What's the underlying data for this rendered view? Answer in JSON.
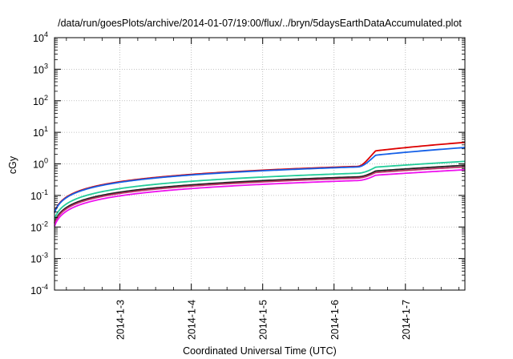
{
  "chart_data": {
    "type": "line",
    "title": "/data/run/goesPlots/archive/2014-01-07/19:00/flux/../bryn/5daysEarthDataAccumulated.plot",
    "xlabel": "Coordinated Universal Time (UTC)",
    "ylabel": "cGy",
    "y_scale": "log",
    "ylim": [
      0.0001,
      10000
    ],
    "y_ticks": [
      {
        "value": 0.0001,
        "base": "10",
        "exp": "-4"
      },
      {
        "value": 0.001,
        "base": "10",
        "exp": "-3"
      },
      {
        "value": 0.01,
        "base": "10",
        "exp": "-2"
      },
      {
        "value": 0.1,
        "base": "10",
        "exp": "-1"
      },
      {
        "value": 1,
        "base": "10",
        "exp": "0"
      },
      {
        "value": 10,
        "base": "10",
        "exp": "1"
      },
      {
        "value": 100,
        "base": "10",
        "exp": "2"
      },
      {
        "value": 1000,
        "base": "10",
        "exp": "3"
      },
      {
        "value": 10000,
        "base": "10",
        "exp": "4"
      }
    ],
    "xlim": [
      "2014-01-02 02:00",
      "2014-01-07 20:00"
    ],
    "x_ticks": [
      "2014-1-3",
      "2014-1-4",
      "2014-1-5",
      "2014-1-6",
      "2014-1-7"
    ],
    "grid": true,
    "legend": "none",
    "series": [
      {
        "color": "#dd0000",
        "final": 4.8,
        "step": 4.6
      },
      {
        "color": "#1560e8",
        "final": 3.3,
        "step": 3.3
      },
      {
        "color": "#22cc99",
        "final": 1.2,
        "step": 1.9
      },
      {
        "color": "#222222",
        "final": 0.9,
        "step": 1.85
      },
      {
        "color": "#bb3366",
        "final": 0.8,
        "step": 1.8
      },
      {
        "color": "#ee11ee",
        "final": 0.65,
        "step": 1.75
      }
    ]
  }
}
